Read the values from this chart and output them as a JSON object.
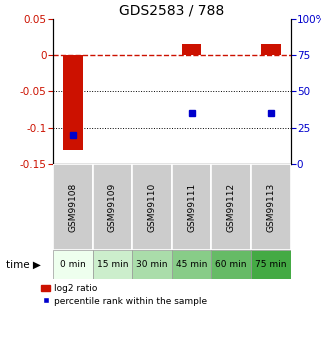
{
  "title": "GDS2583 / 788",
  "samples": [
    "GSM99108",
    "GSM99109",
    "GSM99110",
    "GSM99111",
    "GSM99112",
    "GSM99113"
  ],
  "time_labels": [
    "0 min",
    "15 min",
    "30 min",
    "45 min",
    "60 min",
    "75 min"
  ],
  "log2_ratio": [
    -0.131,
    0.0,
    0.0,
    0.015,
    0.0,
    0.016
  ],
  "percentile_rank": [
    20.0,
    0.0,
    0.0,
    35.0,
    0.0,
    35.0
  ],
  "bar_color": "#cc1100",
  "dot_color": "#0000cc",
  "ylim_left": [
    -0.15,
    0.05
  ],
  "ylim_right": [
    0,
    100
  ],
  "yticks_left": [
    0.05,
    0.0,
    -0.05,
    -0.1,
    -0.15
  ],
  "yticks_right": [
    100,
    75,
    50,
    25,
    0
  ],
  "dotted_line_vals": [
    -0.05,
    -0.1
  ],
  "green_colors": [
    "#eeffee",
    "#cceecc",
    "#aaddaa",
    "#88cc88",
    "#66bb66",
    "#44aa44"
  ],
  "sample_gray": "#cccccc"
}
